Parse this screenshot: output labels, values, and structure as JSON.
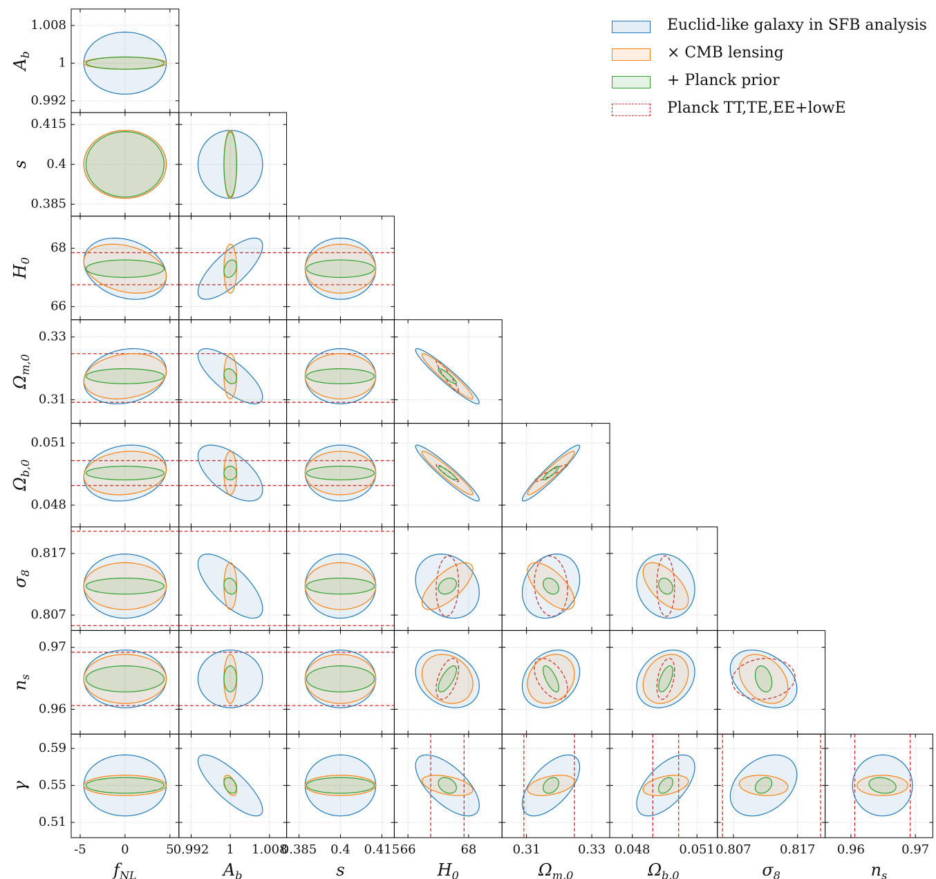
{
  "colors": {
    "euclid": "#1f77b4",
    "cmb": "#ff7f0e",
    "planck_prior": "#2ca02c",
    "planck_data": "#d62728"
  },
  "legend": [
    {
      "label": "Euclid-like galaxy in SFB analysis",
      "style": "euclid"
    },
    {
      "label": "× CMB lensing",
      "style": "cmb"
    },
    {
      "label": "+ Planck prior",
      "style": "planck_prior"
    },
    {
      "label": "Planck TT,TE,EE+lowE",
      "style": "planck_data"
    }
  ],
  "chart_data": {
    "type": "corner",
    "parameters": [
      {
        "name": "f_NL",
        "label": "f_NL",
        "center": 0,
        "range": [
          -6,
          6
        ],
        "ticks": [
          {
            "v": -5,
            "t": "-5"
          },
          {
            "v": 0,
            "t": "0"
          },
          {
            "v": 5,
            "t": "5"
          }
        ],
        "planck": null
      },
      {
        "name": "A_b",
        "label": "A_b",
        "center": 1,
        "range": [
          0.9895,
          1.0115
        ],
        "ticks": [
          {
            "v": 0.992,
            "t": "0.992"
          },
          {
            "v": 1,
            "t": "1"
          },
          {
            "v": 1.008,
            "t": "1.008"
          }
        ],
        "planck": null
      },
      {
        "name": "s",
        "label": "s",
        "center": 0.4,
        "range": [
          0.3805,
          0.4195
        ],
        "ticks": [
          {
            "v": 0.385,
            "t": "0.385"
          },
          {
            "v": 0.4,
            "t": "0.4"
          },
          {
            "v": 0.415,
            "t": "0.415"
          }
        ],
        "planck": null
      },
      {
        "name": "H_0",
        "label": "H_0",
        "center": 67.3,
        "range": [
          65.55,
          69.1
        ],
        "ticks": [
          {
            "v": 66,
            "t": "66"
          },
          {
            "v": 68,
            "t": "68"
          }
        ],
        "planck": [
          66.75,
          67.85
        ]
      },
      {
        "name": "Omega_m0",
        "label": "Ω_m,0",
        "center": 0.3175,
        "range": [
          0.3025,
          0.3355
        ],
        "ticks": [
          {
            "v": 0.31,
            "t": "0.31"
          },
          {
            "v": 0.33,
            "t": "0.33"
          }
        ],
        "planck": [
          0.3092,
          0.3247
        ]
      },
      {
        "name": "Omega_b0",
        "label": "Ω_b,0",
        "center": 0.04955,
        "range": [
          0.04695,
          0.05195
        ],
        "ticks": [
          {
            "v": 0.048,
            "t": "0.048"
          },
          {
            "v": 0.051,
            "t": "0.051"
          }
        ],
        "planck": [
          0.04895,
          0.05015
        ]
      },
      {
        "name": "sigma8",
        "label": "σ_8",
        "center": 0.8117,
        "range": [
          0.8045,
          0.8213
        ],
        "ticks": [
          {
            "v": 0.807,
            "t": "0.807"
          },
          {
            "v": 0.817,
            "t": "0.817"
          }
        ],
        "planck": [
          0.8053,
          0.8206
        ]
      },
      {
        "name": "n_s",
        "label": "n_s",
        "center": 0.9649,
        "range": [
          0.956,
          0.9727
        ],
        "ticks": [
          {
            "v": 0.96,
            "t": "0.96"
          },
          {
            "v": 0.97,
            "t": "0.97"
          }
        ],
        "planck": [
          0.9606,
          0.9692
        ]
      }
    ],
    "sigmas": {
      "euclid": [
        4.6,
        0.0066,
        0.0128,
        1.05,
        0.0088,
        0.00135,
        0.0052,
        0.00465
      ],
      "cmb": [
        4.6,
        0.0013,
        0.0128,
        0.84,
        0.0072,
        0.00105,
        0.0038,
        0.00395
      ],
      "planck_prior": [
        4.35,
        0.0013,
        0.0123,
        0.3,
        0.0024,
        0.00033,
        0.0013,
        0.0021
      ],
      "planck_data": [
        null,
        null,
        null,
        0.37,
        0.0051,
        0.00041,
        0.0049,
        0.0033
      ]
    },
    "gamma": {
      "label": "γ",
      "center": 0.55,
      "range": [
        0.4935,
        0.6055
      ],
      "ticks": [
        {
          "v": 0.51,
          "t": "0.51"
        },
        {
          "v": 0.55,
          "t": "0.55"
        },
        {
          "v": 0.59,
          "t": "0.59"
        }
      ],
      "sigma": {
        "euclid": 0.033,
        "cmb": 0.011,
        "planck_prior": 0.0085
      },
      "rho": {
        "euclid": [
          0,
          -0.8,
          0,
          -0.65,
          0.6,
          0.6,
          0.35,
          0
        ],
        "cmb": [
          0,
          -0.5,
          0,
          -0.45,
          0.4,
          0.4,
          -0.15,
          0
        ],
        "planck_prior": [
          0,
          -0.35,
          0,
          -0.3,
          0.3,
          0.45,
          0.3,
          -0.2
        ]
      }
    },
    "correlations": {
      "euclid": {
        "0-3": -0.25,
        "0-4": 0.2,
        "0-5": 0.15,
        "1-3": 0.75,
        "1-4": -0.75,
        "1-5": -0.6,
        "1-6": -0.7,
        "3-4": -0.95,
        "3-5": -0.95,
        "3-6": -0.2,
        "3-7": -0.25,
        "4-5": 0.95,
        "4-6": 0.2,
        "4-7": 0.25,
        "5-6": -0.1,
        "5-7": 0.25,
        "6-7": -0.35
      },
      "cmb": {
        "0-3": -0.3,
        "0-4": 0.2,
        "0-5": 0.15,
        "3-4": -0.95,
        "3-5": -0.95,
        "3-6": 0.7,
        "3-7": -0.2,
        "4-5": 0.95,
        "4-6": -0.65,
        "4-7": 0.2,
        "5-6": -0.6,
        "5-7": 0.25,
        "6-7": -0.35
      },
      "planck_prior": {
        "1-3": 0.3,
        "1-4": -0.3,
        "1-6": -0.2,
        "3-4": -0.9,
        "3-5": -0.9,
        "3-6": 0.3,
        "3-7": 0.7,
        "4-5": 0.9,
        "4-6": -0.3,
        "4-7": -0.7,
        "5-6": -0.25,
        "5-7": 0.6,
        "6-7": -0.3
      },
      "planck_data": {
        "3-4": -0.95,
        "3-5": -0.95,
        "3-6": 0.1,
        "3-7": 0.5,
        "4-5": 0.95,
        "4-6": -0.1,
        "4-7": -0.5,
        "5-6": -0.05,
        "5-7": 0.4,
        "6-7": 0.1
      }
    }
  }
}
